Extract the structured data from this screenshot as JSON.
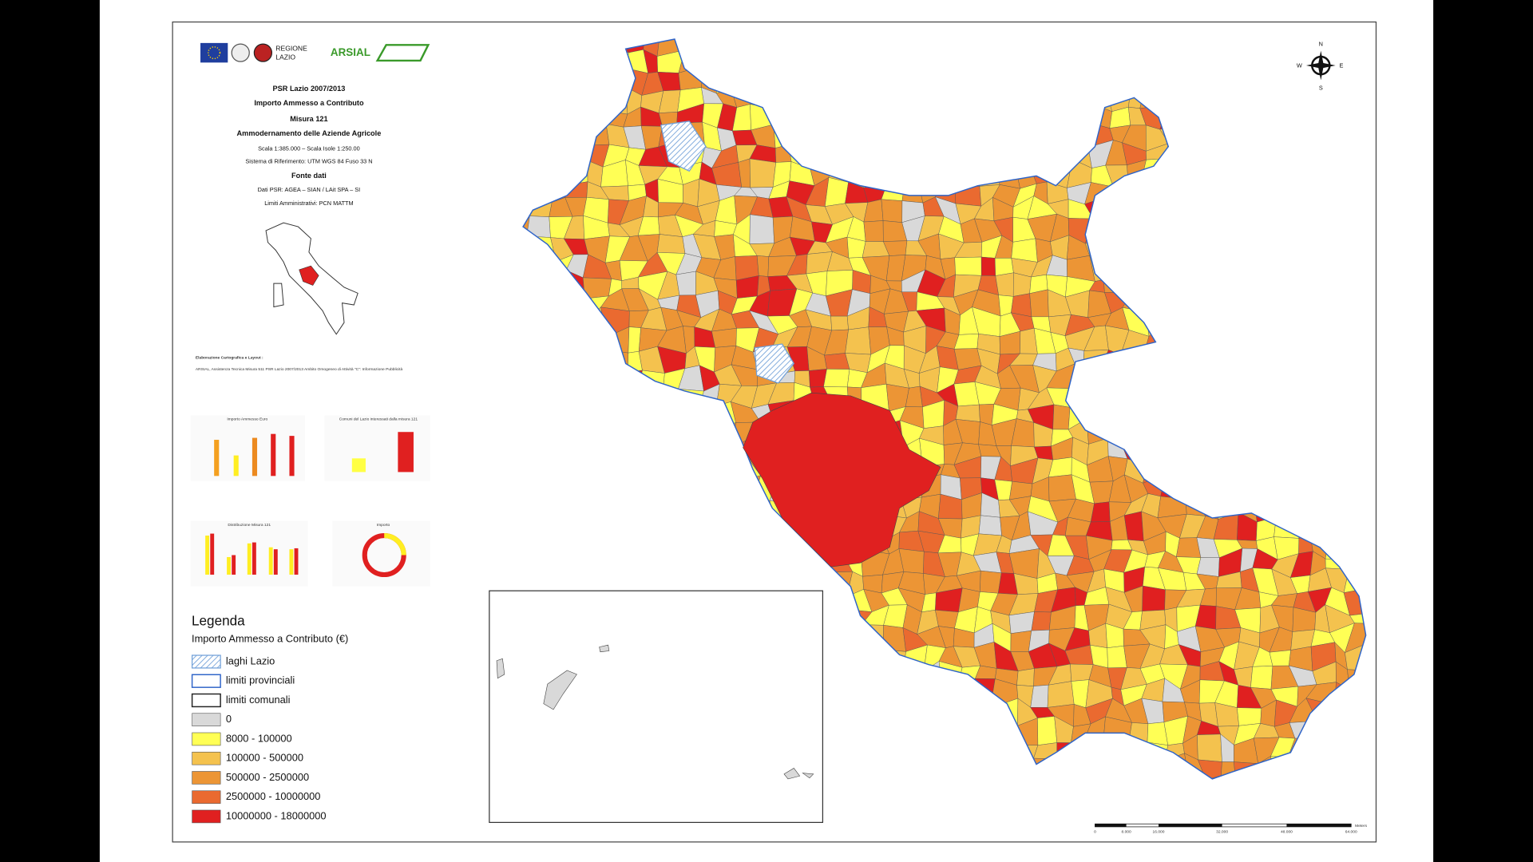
{
  "header": {
    "logos": [
      "REGIONE",
      "LAZIO",
      "ARSIAL"
    ],
    "lines": [
      {
        "text": "PSR Lazio 2007/2013",
        "bold": true
      },
      {
        "text": "Importo Ammesso a Contributo",
        "bold": true
      },
      {
        "text": "Misura 121",
        "bold": true
      },
      {
        "text": "Ammodernamento delle Aziende Agricole",
        "bold": true
      },
      {
        "text": "Scala 1:385.000 – Scala Isole 1:250.00",
        "bold": false
      },
      {
        "text": "Sistema di Riferimento: UTM WGS 84 Fuso 33 N",
        "bold": false
      },
      {
        "text": "Fonte dati",
        "bold": true
      },
      {
        "text": "Dati PSR: AGEA – SIAN / LAit SPA – SI",
        "bold": false
      },
      {
        "text": "Limiti Amministrativi: PCN MATTM",
        "bold": false
      }
    ]
  },
  "credits": {
    "label": "Elaborazione Cartografica e Layout :",
    "text": "ARSIAL, Assistenza Tecnica Misura 511 PSR Lazio 2007/2013 Ambito Omogeneo di Attività \"C\": Informazione Pubblicità"
  },
  "mini_charts": [
    "Importo Ammesso Euro",
    "Comuni del Lazio interessati dalla misura 121",
    "Distribuzione Misura 121",
    "Importo"
  ],
  "legend": {
    "title": "Legenda",
    "subtitle": "Importo Ammesso a Contributo (€)",
    "items": [
      {
        "label": "laghi Lazio",
        "kind": "hatch",
        "color": "#6f9fd8"
      },
      {
        "label": "limiti provinciali",
        "kind": "outline",
        "color": "#2f64c8"
      },
      {
        "label": "limiti comunali",
        "kind": "outline",
        "color": "#222222"
      },
      {
        "label": "0",
        "kind": "fill",
        "color": "#d9d9d9"
      },
      {
        "label": "8000 - 100000",
        "kind": "fill",
        "color": "#ffff55"
      },
      {
        "label": "100000 - 500000",
        "kind": "fill",
        "color": "#f4c24e"
      },
      {
        "label": "500000 - 2500000",
        "kind": "fill",
        "color": "#ec9535"
      },
      {
        "label": "2500000 - 10000000",
        "kind": "fill",
        "color": "#ea6a30"
      },
      {
        "label": "10000000 - 18000000",
        "kind": "fill",
        "color": "#e02020"
      }
    ]
  },
  "compass": [
    "N",
    "E",
    "S",
    "W"
  ],
  "scale_bar": {
    "ticks": [
      "0",
      "8.000",
      "16.000",
      "32.000",
      "48.000",
      "64.000"
    ],
    "unit": "Meters"
  }
}
